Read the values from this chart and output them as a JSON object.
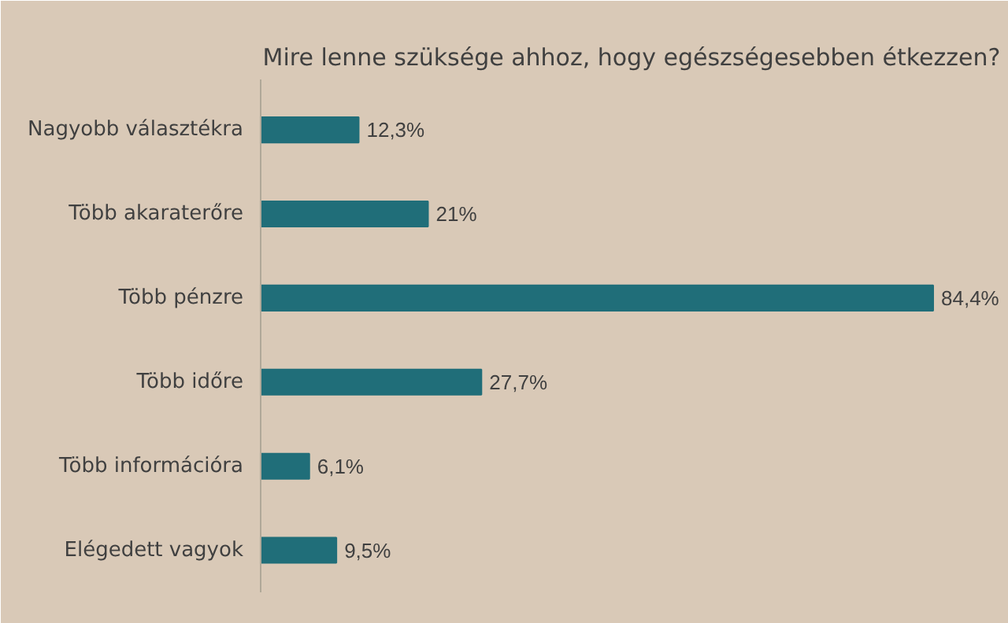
{
  "chart_data": {
    "type": "bar",
    "orientation": "horizontal",
    "title": "Mire lenne szüksége ahhoz, hogy egészségesebben étkezzen?",
    "categories": [
      "Nagyobb választékra",
      "Több akaraterőre",
      "Több pénzre",
      "Több időre",
      "Több információra",
      "Elégedett vagyok"
    ],
    "values": [
      12.3,
      21,
      84.4,
      27.7,
      6.1,
      9.5
    ],
    "value_labels": [
      "12,3%",
      "21%",
      "84,4%",
      "27,7%",
      "6,1%",
      "9,5%"
    ],
    "color": "#206e79",
    "grid": false
  }
}
